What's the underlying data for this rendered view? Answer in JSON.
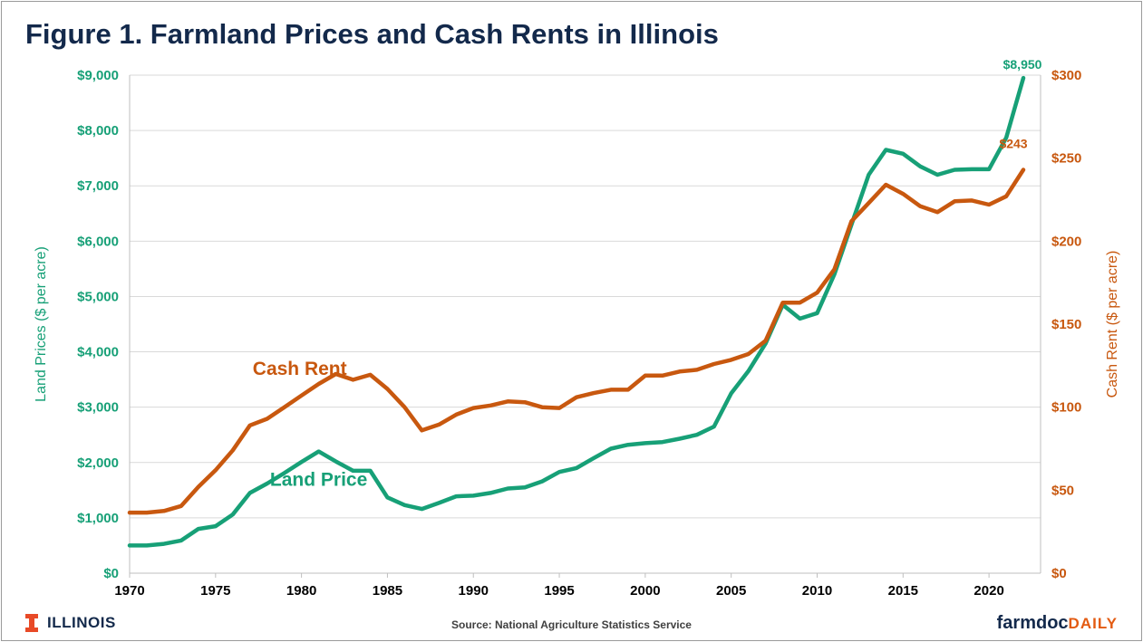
{
  "title": "Figure 1.  Farmland Prices and Cash Rents in Illinois",
  "source": "Source:  National Agriculture Statistics Service",
  "logo_left": "ILLINOIS",
  "brand": {
    "part1": "farmdoc",
    "part2": "DAILY"
  },
  "colors": {
    "land": "#17a077",
    "rent": "#c8580f",
    "title": "#13294b",
    "grid": "#d9d9d9"
  },
  "chart_data": {
    "type": "line",
    "x": [
      1970,
      1971,
      1972,
      1973,
      1974,
      1975,
      1976,
      1977,
      1978,
      1979,
      1980,
      1981,
      1982,
      1983,
      1984,
      1985,
      1986,
      1987,
      1988,
      1989,
      1990,
      1991,
      1992,
      1993,
      1994,
      1995,
      1996,
      1997,
      1998,
      1999,
      2000,
      2001,
      2002,
      2003,
      2004,
      2005,
      2006,
      2007,
      2008,
      2009,
      2010,
      2011,
      2012,
      2013,
      2014,
      2015,
      2016,
      2017,
      2018,
      2019,
      2020,
      2021,
      2022
    ],
    "xlim": [
      1970,
      2023
    ],
    "xticks": [
      "1970",
      "1975",
      "1980",
      "1985",
      "1990",
      "1995",
      "2000",
      "2005",
      "2010",
      "2015",
      "2020"
    ],
    "series": [
      {
        "name": "Land Price",
        "axis": "left",
        "values": [
          500,
          500,
          530,
          590,
          800,
          850,
          1060,
          1450,
          1620,
          1810,
          2010,
          2200,
          2020,
          1850,
          1850,
          1370,
          1230,
          1160,
          1270,
          1390,
          1400,
          1450,
          1530,
          1550,
          1660,
          1830,
          1900,
          2080,
          2250,
          2320,
          2350,
          2370,
          2430,
          2500,
          2650,
          3250,
          3650,
          4150,
          4850,
          4600,
          4700,
          5400,
          6300,
          7200,
          7650,
          7580,
          7350,
          7200,
          7290,
          7300,
          7300,
          7870,
          8950
        ]
      },
      {
        "name": "Cash Rent",
        "axis": "right",
        "values": [
          36.5,
          36.5,
          37.5,
          40.5,
          52,
          62,
          74,
          89,
          93,
          100,
          107,
          114,
          120,
          116.5,
          119.5,
          111,
          100,
          86,
          89.5,
          95.5,
          99.5,
          101,
          103.5,
          103,
          100,
          99.5,
          106,
          108.5,
          110.5,
          110.5,
          119,
          119,
          121.5,
          122.5,
          126,
          128.5,
          132,
          140,
          163,
          163,
          169,
          183,
          212,
          223,
          234,
          228.5,
          221,
          217.5,
          224,
          224.5,
          222,
          227,
          243
        ]
      }
    ],
    "y_left": {
      "label": "Land Prices ($ per acre)",
      "ylim": [
        0,
        9000
      ],
      "ticks": [
        "$0",
        "$1,000",
        "$2,000",
        "$3,000",
        "$4,000",
        "$5,000",
        "$6,000",
        "$7,000",
        "$8,000",
        "$9,000"
      ]
    },
    "y_right": {
      "label": "Cash Rent ($ per acre)",
      "ylim": [
        0,
        300
      ],
      "ticks": [
        "$0",
        "$50",
        "$100",
        "$150",
        "$200",
        "$250",
        "$300"
      ]
    },
    "annotations": {
      "land_end": "$8,950",
      "rent_end": "$243"
    },
    "series_labels": {
      "land": "Land Price",
      "rent": "Cash Rent"
    },
    "grid": true
  }
}
